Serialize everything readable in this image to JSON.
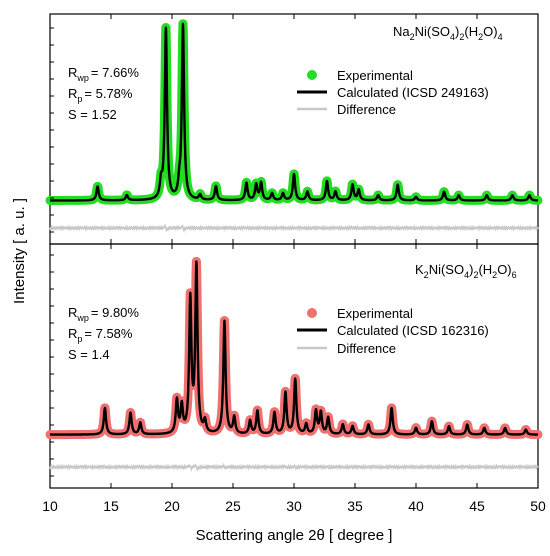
{
  "chart_data": {
    "type": "line",
    "xlabel": "Scattering angle 2θ [ degree ]",
    "ylabel": "Intensity [ a. u. ]",
    "xlim": [
      10,
      50
    ],
    "xticks": [
      10,
      15,
      20,
      25,
      30,
      35,
      40,
      45,
      50
    ],
    "panels": [
      {
        "compound": {
          "base": "Na",
          "s1": "2",
          "mid": "Ni(SO",
          "s2": "4",
          "mid2": ")",
          "s3": "2",
          "mid3": "(H",
          "s4": "2",
          "mid4": "O)",
          "s5": "4"
        },
        "stats": {
          "rwp": "= 7.66%",
          "rp": "=  5.78%",
          "s": "S = 1.52"
        },
        "legend": {
          "exp": "Experimental",
          "calc": "Calculated (ICSD 249163)",
          "diff": "Difference"
        },
        "exp_color": "#22dd22",
        "calc_color": "#000000",
        "diff_color": "#c8c8c8",
        "baseline": 0.02,
        "peaks": [
          {
            "x": 13.9,
            "h": 0.08
          },
          {
            "x": 16.3,
            "h": 0.03
          },
          {
            "x": 19.1,
            "h": 0.09
          },
          {
            "x": 19.5,
            "h": 0.98
          },
          {
            "x": 20.6,
            "h": 0.07
          },
          {
            "x": 20.9,
            "h": 1.0
          },
          {
            "x": 22.3,
            "h": 0.03
          },
          {
            "x": 23.6,
            "h": 0.08
          },
          {
            "x": 26.1,
            "h": 0.1
          },
          {
            "x": 26.9,
            "h": 0.09
          },
          {
            "x": 27.3,
            "h": 0.1
          },
          {
            "x": 28.2,
            "h": 0.04
          },
          {
            "x": 29.1,
            "h": 0.04
          },
          {
            "x": 30.0,
            "h": 0.15
          },
          {
            "x": 31.1,
            "h": 0.05
          },
          {
            "x": 32.7,
            "h": 0.11
          },
          {
            "x": 33.4,
            "h": 0.05
          },
          {
            "x": 34.8,
            "h": 0.09
          },
          {
            "x": 35.3,
            "h": 0.06
          },
          {
            "x": 36.9,
            "h": 0.03
          },
          {
            "x": 38.5,
            "h": 0.09
          },
          {
            "x": 40.0,
            "h": 0.02
          },
          {
            "x": 42.3,
            "h": 0.05
          },
          {
            "x": 43.5,
            "h": 0.03
          },
          {
            "x": 45.8,
            "h": 0.03
          },
          {
            "x": 47.9,
            "h": 0.03
          },
          {
            "x": 49.3,
            "h": 0.03
          }
        ]
      },
      {
        "compound": {
          "base": "K",
          "s1": "2",
          "mid": "Ni(SO",
          "s2": "4",
          "mid2": ")",
          "s3": "2",
          "mid3": "(H",
          "s4": "2",
          "mid4": "O)",
          "s5": "6"
        },
        "stats": {
          "rwp": "= 9.80%",
          "rp": "= 7.58%",
          "s": "S = 1.4"
        },
        "legend": {
          "exp": "Experimental",
          "calc": "Calculated (ICSD 162316)",
          "diff": "Difference"
        },
        "exp_color": "#f07070",
        "calc_color": "#000000",
        "diff_color": "#c8c8c8",
        "baseline": 0.02,
        "peaks": [
          {
            "x": 14.5,
            "h": 0.16
          },
          {
            "x": 16.6,
            "h": 0.13
          },
          {
            "x": 17.4,
            "h": 0.07
          },
          {
            "x": 20.4,
            "h": 0.2
          },
          {
            "x": 20.8,
            "h": 0.16
          },
          {
            "x": 21.5,
            "h": 0.8
          },
          {
            "x": 22.0,
            "h": 1.0
          },
          {
            "x": 22.7,
            "h": 0.07
          },
          {
            "x": 24.3,
            "h": 0.68
          },
          {
            "x": 25.1,
            "h": 0.1
          },
          {
            "x": 26.4,
            "h": 0.08
          },
          {
            "x": 27.0,
            "h": 0.14
          },
          {
            "x": 28.4,
            "h": 0.13
          },
          {
            "x": 29.3,
            "h": 0.25
          },
          {
            "x": 30.1,
            "h": 0.33
          },
          {
            "x": 31.0,
            "h": 0.06
          },
          {
            "x": 31.8,
            "h": 0.14
          },
          {
            "x": 32.2,
            "h": 0.13
          },
          {
            "x": 32.8,
            "h": 0.1
          },
          {
            "x": 34.0,
            "h": 0.06
          },
          {
            "x": 34.8,
            "h": 0.05
          },
          {
            "x": 36.1,
            "h": 0.06
          },
          {
            "x": 38.0,
            "h": 0.16
          },
          {
            "x": 40.0,
            "h": 0.04
          },
          {
            "x": 41.3,
            "h": 0.08
          },
          {
            "x": 42.7,
            "h": 0.05
          },
          {
            "x": 44.2,
            "h": 0.06
          },
          {
            "x": 45.6,
            "h": 0.04
          },
          {
            "x": 47.3,
            "h": 0.04
          },
          {
            "x": 49.0,
            "h": 0.03
          }
        ]
      }
    ]
  }
}
